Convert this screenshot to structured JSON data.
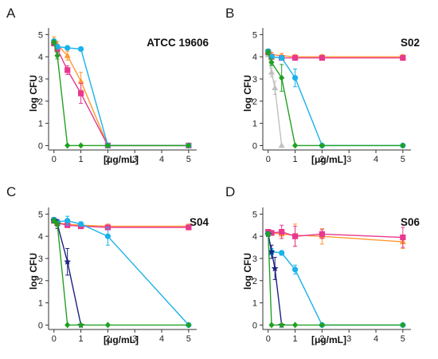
{
  "colors": {
    "orange": "#ff9933",
    "magenta": "#e8388f",
    "cyan": "#1ab2ea",
    "green": "#22a022",
    "gray": "#c0c0c0",
    "navy": "#1a237e",
    "axis": "#333333",
    "text": "#111111"
  },
  "chart_data": [
    {
      "type": "line",
      "panel_label": "A",
      "strain_label": "ATCC 19606",
      "xlabel": "[μg/mL]",
      "ylabel": "log CFU",
      "xlim": [
        -0.2,
        5.3
      ],
      "ylim": [
        -0.2,
        5.3
      ],
      "x_ticks": [
        0,
        1,
        2,
        3,
        4,
        5
      ],
      "y_ticks": [
        0,
        1,
        2,
        3,
        4,
        5
      ],
      "grid": false,
      "series": [
        {
          "color_key": "orange",
          "marker": "triangle",
          "x": [
            0,
            0.125,
            0.5,
            1,
            2,
            5
          ],
          "y": [
            4.75,
            4.55,
            4.05,
            2.9,
            0,
            0
          ],
          "err": [
            0.15,
            0.15,
            0.2,
            0.4,
            0,
            0
          ]
        },
        {
          "color_key": "magenta",
          "marker": "square",
          "x": [
            0,
            0.125,
            0.5,
            1,
            2,
            5
          ],
          "y": [
            4.6,
            4.35,
            3.4,
            2.35,
            0,
            0
          ],
          "err": [
            0.1,
            0.15,
            0.2,
            0.45,
            0,
            0
          ]
        },
        {
          "color_key": "cyan",
          "marker": "circle",
          "x": [
            0,
            0.125,
            0.5,
            1,
            2,
            5
          ],
          "y": [
            4.7,
            4.45,
            4.4,
            4.35,
            0,
            0
          ],
          "err": [
            0.1,
            0.1,
            0.08,
            0.08,
            0,
            0
          ]
        },
        {
          "color_key": "green",
          "marker": "diamond",
          "x": [
            0,
            0.125,
            0.5,
            1,
            2,
            5
          ],
          "y": [
            4.65,
            4.05,
            0,
            0,
            0,
            0
          ],
          "err": [
            0.1,
            0.15,
            0,
            0,
            0,
            0
          ]
        }
      ]
    },
    {
      "type": "line",
      "panel_label": "B",
      "strain_label": "S02",
      "xlabel": "[μg/mL]",
      "ylabel": "log CFU",
      "xlim": [
        -0.2,
        5.3
      ],
      "ylim": [
        -0.2,
        5.3
      ],
      "x_ticks": [
        0,
        1,
        2,
        3,
        4,
        5
      ],
      "y_ticks": [
        0,
        1,
        2,
        3,
        4,
        5
      ],
      "grid": false,
      "series": [
        {
          "color_key": "gray",
          "marker": "triangle",
          "x": [
            0,
            0.125,
            0.25,
            0.5
          ],
          "y": [
            4.1,
            3.3,
            2.6,
            0
          ],
          "err": [
            0.1,
            0.2,
            0.3,
            0
          ]
        },
        {
          "color_key": "orange",
          "marker": "triangle",
          "x": [
            0,
            0.125,
            0.5,
            1,
            2,
            5
          ],
          "y": [
            4.25,
            4.1,
            4.05,
            4.0,
            4.0,
            4.0
          ],
          "err": [
            0.1,
            0.1,
            0.1,
            0.1,
            0.1,
            0.1
          ]
        },
        {
          "color_key": "magenta",
          "marker": "square",
          "x": [
            0,
            0.125,
            0.5,
            1,
            2,
            5
          ],
          "y": [
            4.2,
            4.0,
            3.95,
            3.95,
            3.95,
            3.95
          ],
          "err": [
            0.1,
            0.1,
            0.1,
            0.1,
            0.1,
            0.1
          ]
        },
        {
          "color_key": "cyan",
          "marker": "circle",
          "x": [
            0,
            0.125,
            0.5,
            1,
            2,
            5
          ],
          "y": [
            4.25,
            4.0,
            3.95,
            3.05,
            0,
            0
          ],
          "err": [
            0.08,
            0.1,
            0.1,
            0.4,
            0,
            0
          ]
        },
        {
          "color_key": "green",
          "marker": "diamond",
          "x": [
            0,
            0.125,
            0.5,
            1,
            2,
            5
          ],
          "y": [
            4.2,
            3.75,
            3.05,
            0,
            0,
            0
          ],
          "err": [
            0.1,
            0.15,
            0.6,
            0,
            0,
            0
          ]
        }
      ]
    },
    {
      "type": "line",
      "panel_label": "C",
      "strain_label": "S04",
      "xlabel": "[μg/mL]",
      "ylabel": "log CFU",
      "xlim": [
        -0.2,
        5.3
      ],
      "ylim": [
        -0.2,
        5.3
      ],
      "x_ticks": [
        0,
        1,
        2,
        3,
        4,
        5
      ],
      "y_ticks": [
        0,
        1,
        2,
        3,
        4,
        5
      ],
      "grid": false,
      "series": [
        {
          "color_key": "orange",
          "marker": "triangle",
          "x": [
            0,
            0.125,
            0.5,
            1,
            2,
            5
          ],
          "y": [
            4.75,
            4.6,
            4.55,
            4.5,
            4.45,
            4.45
          ],
          "err": [
            0.1,
            0.1,
            0.1,
            0.1,
            0.1,
            0.1
          ]
        },
        {
          "color_key": "magenta",
          "marker": "square",
          "x": [
            0,
            0.125,
            0.5,
            1,
            2,
            5
          ],
          "y": [
            4.7,
            4.6,
            4.5,
            4.45,
            4.4,
            4.4
          ],
          "err": [
            0.1,
            0.1,
            0.1,
            0.1,
            0.05,
            0.05
          ]
        },
        {
          "color_key": "cyan",
          "marker": "circle",
          "x": [
            0,
            0.125,
            0.5,
            1,
            2,
            5
          ],
          "y": [
            4.75,
            4.65,
            4.7,
            4.55,
            4.0,
            0
          ],
          "err": [
            0.1,
            0.1,
            0.2,
            0.1,
            0.4,
            0
          ]
        },
        {
          "color_key": "navy",
          "marker": "star",
          "x": [
            0,
            0.125,
            0.5,
            1
          ],
          "y": [
            4.7,
            4.55,
            2.85,
            0
          ],
          "err": [
            0.1,
            0.2,
            0.6,
            0
          ]
        },
        {
          "color_key": "green",
          "marker": "diamond",
          "x": [
            0,
            0.125,
            0.5,
            1,
            2,
            5
          ],
          "y": [
            4.7,
            4.55,
            0,
            0,
            0,
            0
          ],
          "err": [
            0.1,
            0.1,
            0,
            0,
            0,
            0
          ]
        }
      ]
    },
    {
      "type": "line",
      "panel_label": "D",
      "strain_label": "S06",
      "xlabel": "[μg/mL]",
      "ylabel": "log CFU",
      "xlim": [
        -0.2,
        5.3
      ],
      "ylim": [
        -0.2,
        5.3
      ],
      "x_ticks": [
        0,
        1,
        2,
        3,
        4,
        5
      ],
      "y_ticks": [
        0,
        1,
        2,
        3,
        4,
        5
      ],
      "grid": false,
      "series": [
        {
          "color_key": "orange",
          "marker": "triangle",
          "x": [
            0,
            0.125,
            0.5,
            1,
            2,
            5
          ],
          "y": [
            4.15,
            4.15,
            4.1,
            4.05,
            4.0,
            3.75
          ],
          "err": [
            0.1,
            0.1,
            0.2,
            0.5,
            0.35,
            0.3
          ]
        },
        {
          "color_key": "magenta",
          "marker": "square",
          "x": [
            0,
            0.125,
            0.5,
            1,
            2,
            5
          ],
          "y": [
            4.2,
            4.15,
            4.2,
            4.0,
            4.1,
            3.95
          ],
          "err": [
            0.1,
            0.1,
            0.3,
            0.45,
            0.2,
            0.45
          ]
        },
        {
          "color_key": "cyan",
          "marker": "circle",
          "x": [
            0,
            0.125,
            0.5,
            1,
            2,
            5
          ],
          "y": [
            4.1,
            3.3,
            3.25,
            2.5,
            0,
            0
          ],
          "err": [
            0.1,
            0.15,
            0.1,
            0.2,
            0,
            0
          ]
        },
        {
          "color_key": "navy",
          "marker": "star",
          "x": [
            0,
            0.125,
            0.25,
            0.5
          ],
          "y": [
            4.1,
            3.3,
            2.55,
            0
          ],
          "err": [
            0.1,
            0.3,
            0.5,
            0
          ]
        },
        {
          "color_key": "green",
          "marker": "diamond",
          "x": [
            0,
            0.125,
            0.5,
            1,
            2,
            5
          ],
          "y": [
            4.1,
            0,
            0,
            0,
            0,
            0
          ],
          "err": [
            0.1,
            0,
            0,
            0,
            0,
            0
          ]
        }
      ]
    }
  ]
}
